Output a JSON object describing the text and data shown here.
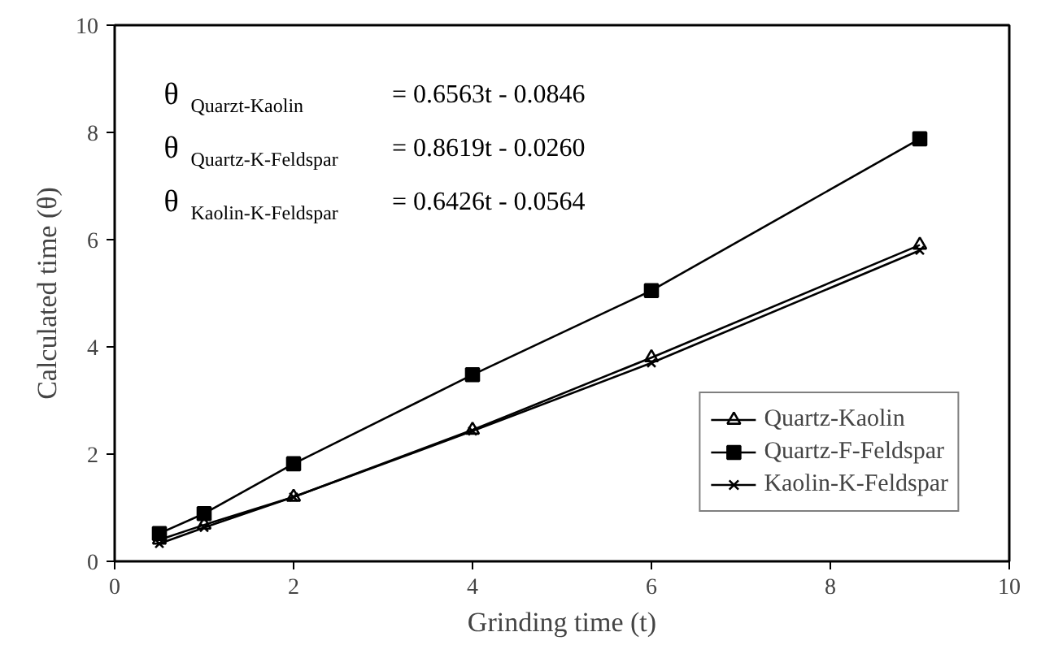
{
  "chart_data": {
    "type": "line",
    "xlabel": "Grinding time (t)",
    "ylabel": "Calculated time (θ)",
    "x": [
      0.5,
      1,
      2,
      4,
      6,
      9
    ],
    "series": [
      {
        "name": "Quartz-Kaolin",
        "color": "#000000",
        "marker": "triangle",
        "values": [
          0.4,
          0.68,
          1.2,
          2.45,
          3.8,
          5.9
        ]
      },
      {
        "name": "Quartz-F-Feldspar",
        "color": "#000000",
        "marker": "square",
        "values": [
          0.52,
          0.89,
          1.82,
          3.48,
          5.05,
          7.88
        ]
      },
      {
        "name": "Kaolin-K-Feldspar",
        "color": "#000000",
        "marker": "cross",
        "values": [
          0.33,
          0.63,
          1.2,
          2.43,
          3.7,
          5.8
        ]
      }
    ],
    "xlim": [
      0,
      10
    ],
    "ylim": [
      0,
      10
    ],
    "xticks": [
      0,
      2,
      4,
      6,
      8,
      10
    ],
    "yticks": [
      0,
      2,
      4,
      6,
      8,
      10
    ],
    "grid": false,
    "legend": "bottom right",
    "annotations": [
      "θ$_{Quarzt-Kaolin}$ = 0.6563t - 0.0846",
      "θ$_{Quartz-K-Feldspar}$ = 0.8619t - 0.0260",
      "θ$_{Kaolin-K-Feldspar}$ = 0.6426t - 0.0564"
    ]
  }
}
